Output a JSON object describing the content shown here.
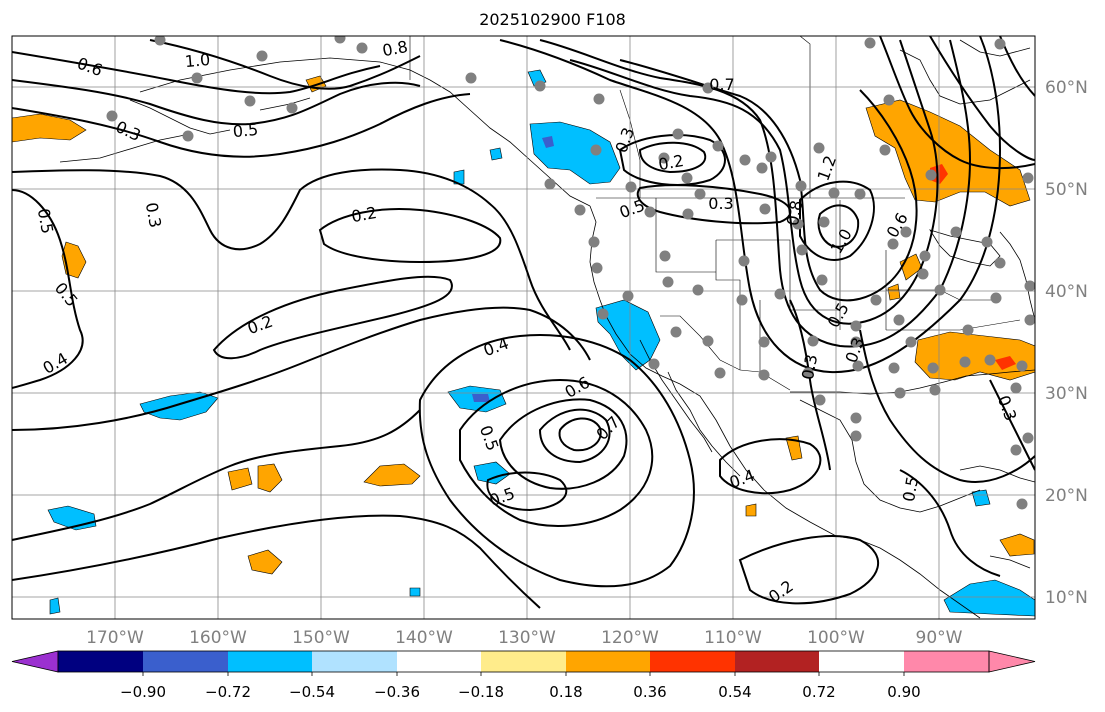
{
  "title": "2025102900 F108",
  "lat_labels": [
    "60°N",
    "50°N",
    "40°N",
    "30°N",
    "20°N",
    "10°N"
  ],
  "lon_labels": [
    "170°W",
    "160°W",
    "150°W",
    "140°W",
    "130°W",
    "120°W",
    "110°W",
    "100°W",
    "90°W"
  ],
  "colorbar": {
    "labels": [
      "−0.90",
      "−0.72",
      "−0.54",
      "−0.36",
      "−0.18",
      "0.18",
      "0.36",
      "0.54",
      "0.72",
      "0.90"
    ],
    "colors": [
      "#9b30d0",
      "#000080",
      "#3a5fcd",
      "#00bfff",
      "#b0e2ff",
      "#ffffff",
      "#ffec8b",
      "#ffa500",
      "#ff3300",
      "#b22222",
      "#ff88aa"
    ]
  },
  "contour_labels": [
    {
      "text": "1.0"
    },
    {
      "text": "0.8"
    },
    {
      "text": "0.6"
    },
    {
      "text": "0.3"
    },
    {
      "text": "0.5"
    },
    {
      "text": "0.7"
    },
    {
      "text": "0.2"
    },
    {
      "text": "0.3"
    },
    {
      "text": "0.5"
    },
    {
      "text": "0.3"
    },
    {
      "text": "0.2"
    },
    {
      "text": "0.8"
    },
    {
      "text": "1.2"
    },
    {
      "text": "1.0"
    },
    {
      "text": "0.6"
    },
    {
      "text": "0.5"
    },
    {
      "text": "0.3"
    },
    {
      "text": "0.5"
    },
    {
      "text": "0.3"
    },
    {
      "text": "0.5"
    },
    {
      "text": "0.2"
    },
    {
      "text": "0.4"
    },
    {
      "text": "0.4"
    },
    {
      "text": "0.6"
    },
    {
      "text": "0.7"
    },
    {
      "text": "0.5"
    },
    {
      "text": "0.5"
    },
    {
      "text": "0.4"
    },
    {
      "text": "0.2"
    },
    {
      "text": "0.5"
    },
    {
      "text": "0.3"
    },
    {
      "text": "0.3"
    }
  ]
}
